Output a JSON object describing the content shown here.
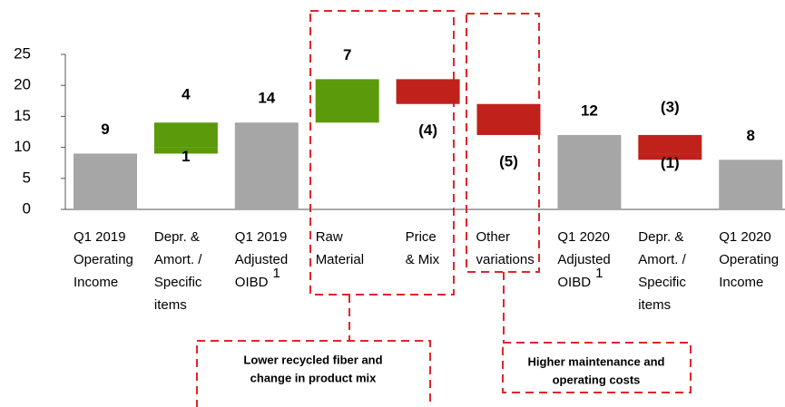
{
  "chart_data": {
    "type": "waterfall",
    "categories": [
      [
        "Q1 2019",
        "Operating",
        "Income"
      ],
      [
        "Depr. &",
        "Amort. /",
        "Specific",
        "items"
      ],
      [
        "Q1 2019",
        "Adjusted",
        "OIBD"
      ],
      [
        "Raw",
        "Material"
      ],
      [
        "Price",
        "& Mix"
      ],
      [
        "Other",
        "variations"
      ],
      [
        "Q1 2020",
        "Adjusted",
        "OIBD"
      ],
      [
        "Depr. &",
        "Amort. /",
        "Specific",
        "items"
      ],
      [
        "Q1 2020",
        "Operating",
        "Income"
      ]
    ],
    "category_notes": [
      null,
      null,
      "1",
      null,
      null,
      null,
      "1",
      null,
      null
    ],
    "total": [
      true,
      false,
      true,
      false,
      false,
      false,
      true,
      false,
      true
    ],
    "values": [
      [
        9
      ],
      [
        1,
        4
      ],
      [
        14
      ],
      [
        7
      ],
      [
        -4
      ],
      [
        -5
      ],
      [
        12
      ],
      [
        -3,
        -1
      ],
      [
        8
      ]
    ],
    "value_labels": [
      [
        "9"
      ],
      [
        "1",
        "4"
      ],
      [
        "14"
      ],
      [
        "7"
      ],
      [
        "(4)"
      ],
      [
        "(5)"
      ],
      [
        "12"
      ],
      [
        "(3)",
        "(1)"
      ],
      [
        "8"
      ]
    ],
    "colors": {
      "total": "#a6a6a6",
      "increase": "#5b9a0a",
      "decrease": "#c1211b"
    },
    "ylim": [
      0,
      25
    ],
    "yticks": [
      0,
      5,
      10,
      15,
      20,
      25
    ],
    "annotations": [
      {
        "lines": [
          "Lower recycled fiber and",
          "change in product mix"
        ],
        "categories": [
          3,
          4
        ]
      },
      {
        "lines": [
          "Higher maintenance and",
          "operating costs"
        ],
        "categories": [
          5
        ]
      }
    ]
  }
}
